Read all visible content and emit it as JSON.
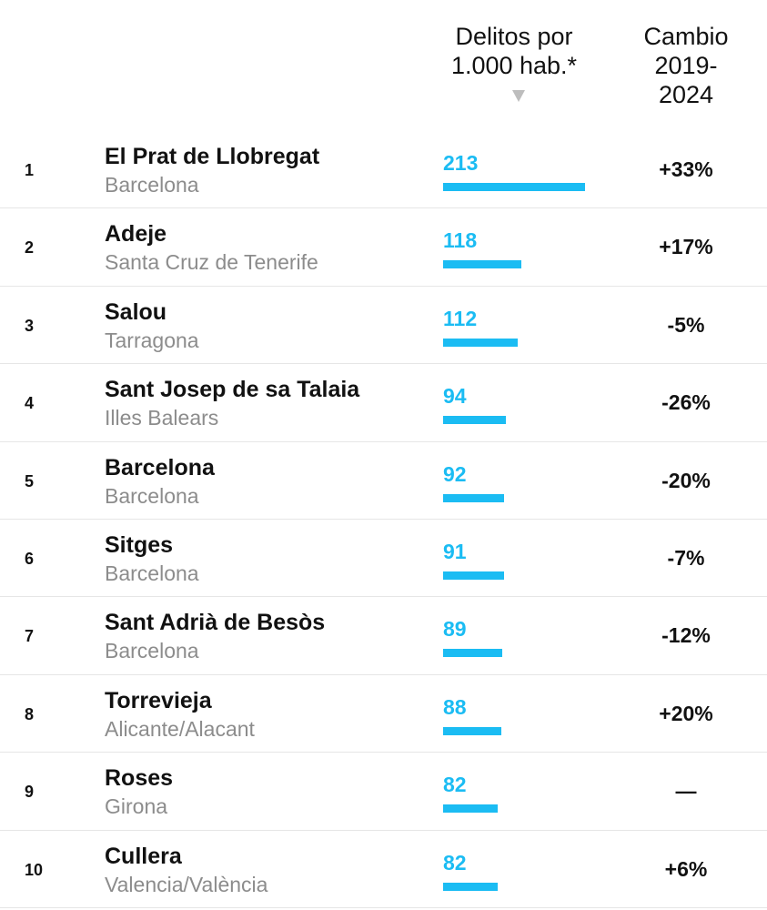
{
  "header": {
    "rate_label_line1": "Delitos por",
    "rate_label_line2": "1.000 hab.*",
    "change_label_line1": "Cambio",
    "change_label_line2": "2019-",
    "change_label_line3": "2024"
  },
  "colors": {
    "accent": "#1bbcf3",
    "province_text": "#8c8c8c",
    "sort_arrow": "#bdbdbd"
  },
  "chart_data": {
    "type": "table",
    "columns": [
      "",
      "",
      "Delitos por 1.000 hab.*",
      "Cambio 2019-2024"
    ],
    "bar_max": 213,
    "rows": [
      {
        "rank": "1",
        "name": "El Prat de Llobregat",
        "province": "Barcelona",
        "value": 213,
        "change": "+33%"
      },
      {
        "rank": "2",
        "name": "Adeje",
        "province": "Santa Cruz de Tenerife",
        "value": 118,
        "change": "+17%"
      },
      {
        "rank": "3",
        "name": "Salou",
        "province": "Tarragona",
        "value": 112,
        "change": "-5%"
      },
      {
        "rank": "4",
        "name": "Sant Josep de sa Talaia",
        "province": "Illes Balears",
        "value": 94,
        "change": "-26%"
      },
      {
        "rank": "5",
        "name": "Barcelona",
        "province": "Barcelona",
        "value": 92,
        "change": "-20%"
      },
      {
        "rank": "6",
        "name": "Sitges",
        "province": "Barcelona",
        "value": 91,
        "change": "-7%"
      },
      {
        "rank": "7",
        "name": "Sant Adrià de Besòs",
        "province": "Barcelona",
        "value": 89,
        "change": "-12%"
      },
      {
        "rank": "8",
        "name": "Torrevieja",
        "province": "Alicante/Alacant",
        "value": 88,
        "change": "+20%"
      },
      {
        "rank": "9",
        "name": "Roses",
        "province": "Girona",
        "value": 82,
        "change": "—"
      },
      {
        "rank": "10",
        "name": "Cullera",
        "province": "Valencia/València",
        "value": 82,
        "change": "+6%"
      }
    ]
  }
}
